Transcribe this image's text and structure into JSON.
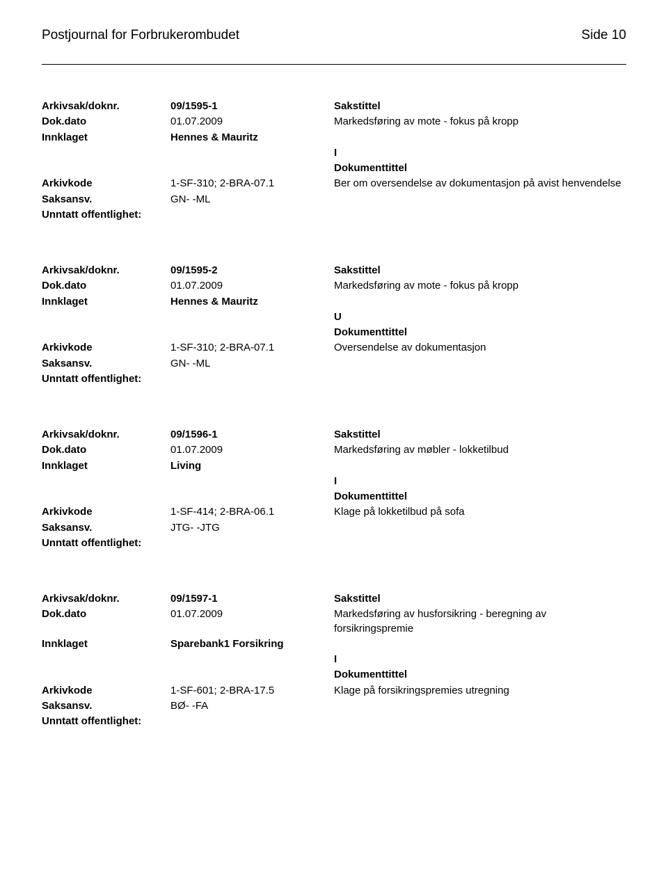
{
  "header": {
    "title": "Postjournal for Forbrukerombudet",
    "side_label": "Side 10"
  },
  "labels": {
    "arkivsak": "Arkivsak/doknr.",
    "dokdato": "Dok.dato",
    "innklaget": "Innklaget",
    "arkivkode": "Arkivkode",
    "saksansv": "Saksansv.",
    "unntatt": "Unntatt offentlighet:",
    "sakstittel": "Sakstittel",
    "dokumenttittel": "Dokumenttittel"
  },
  "records": [
    {
      "doknr": "09/1595-1",
      "dato": "01.07.2009",
      "sakstittel": "Markedsføring av mote - fokus på kropp",
      "innklaget": "Hennes & Mauritz",
      "io": "I",
      "arkivkode": "1-SF-310; 2-BRA-07.1",
      "dokumenttittel": "Ber om oversendelse av dokumentasjon på avist henvendelse",
      "saksansv": "GN- -ML"
    },
    {
      "doknr": "09/1595-2",
      "dato": "01.07.2009",
      "sakstittel": "Markedsføring av mote - fokus på kropp",
      "innklaget": "Hennes & Mauritz",
      "io": "U",
      "arkivkode": "1-SF-310; 2-BRA-07.1",
      "dokumenttittel": "Oversendelse av dokumentasjon",
      "saksansv": "GN- -ML"
    },
    {
      "doknr": "09/1596-1",
      "dato": "01.07.2009",
      "sakstittel": "Markedsføring av møbler - lokketilbud",
      "innklaget": "Living",
      "io": "I",
      "arkivkode": "1-SF-414; 2-BRA-06.1",
      "dokumenttittel": "Klage på lokketilbud på sofa",
      "saksansv": "JTG- -JTG"
    },
    {
      "doknr": "09/1597-1",
      "dato": "01.07.2009",
      "sakstittel": "Markedsføring av husforsikring - beregning av forsikringspremie",
      "innklaget": "Sparebank1 Forsikring",
      "io": "I",
      "arkivkode": "1-SF-601; 2-BRA-17.5",
      "dokumenttittel": "Klage på forsikringspremies utregning",
      "saksansv": "BØ- -FA"
    }
  ]
}
